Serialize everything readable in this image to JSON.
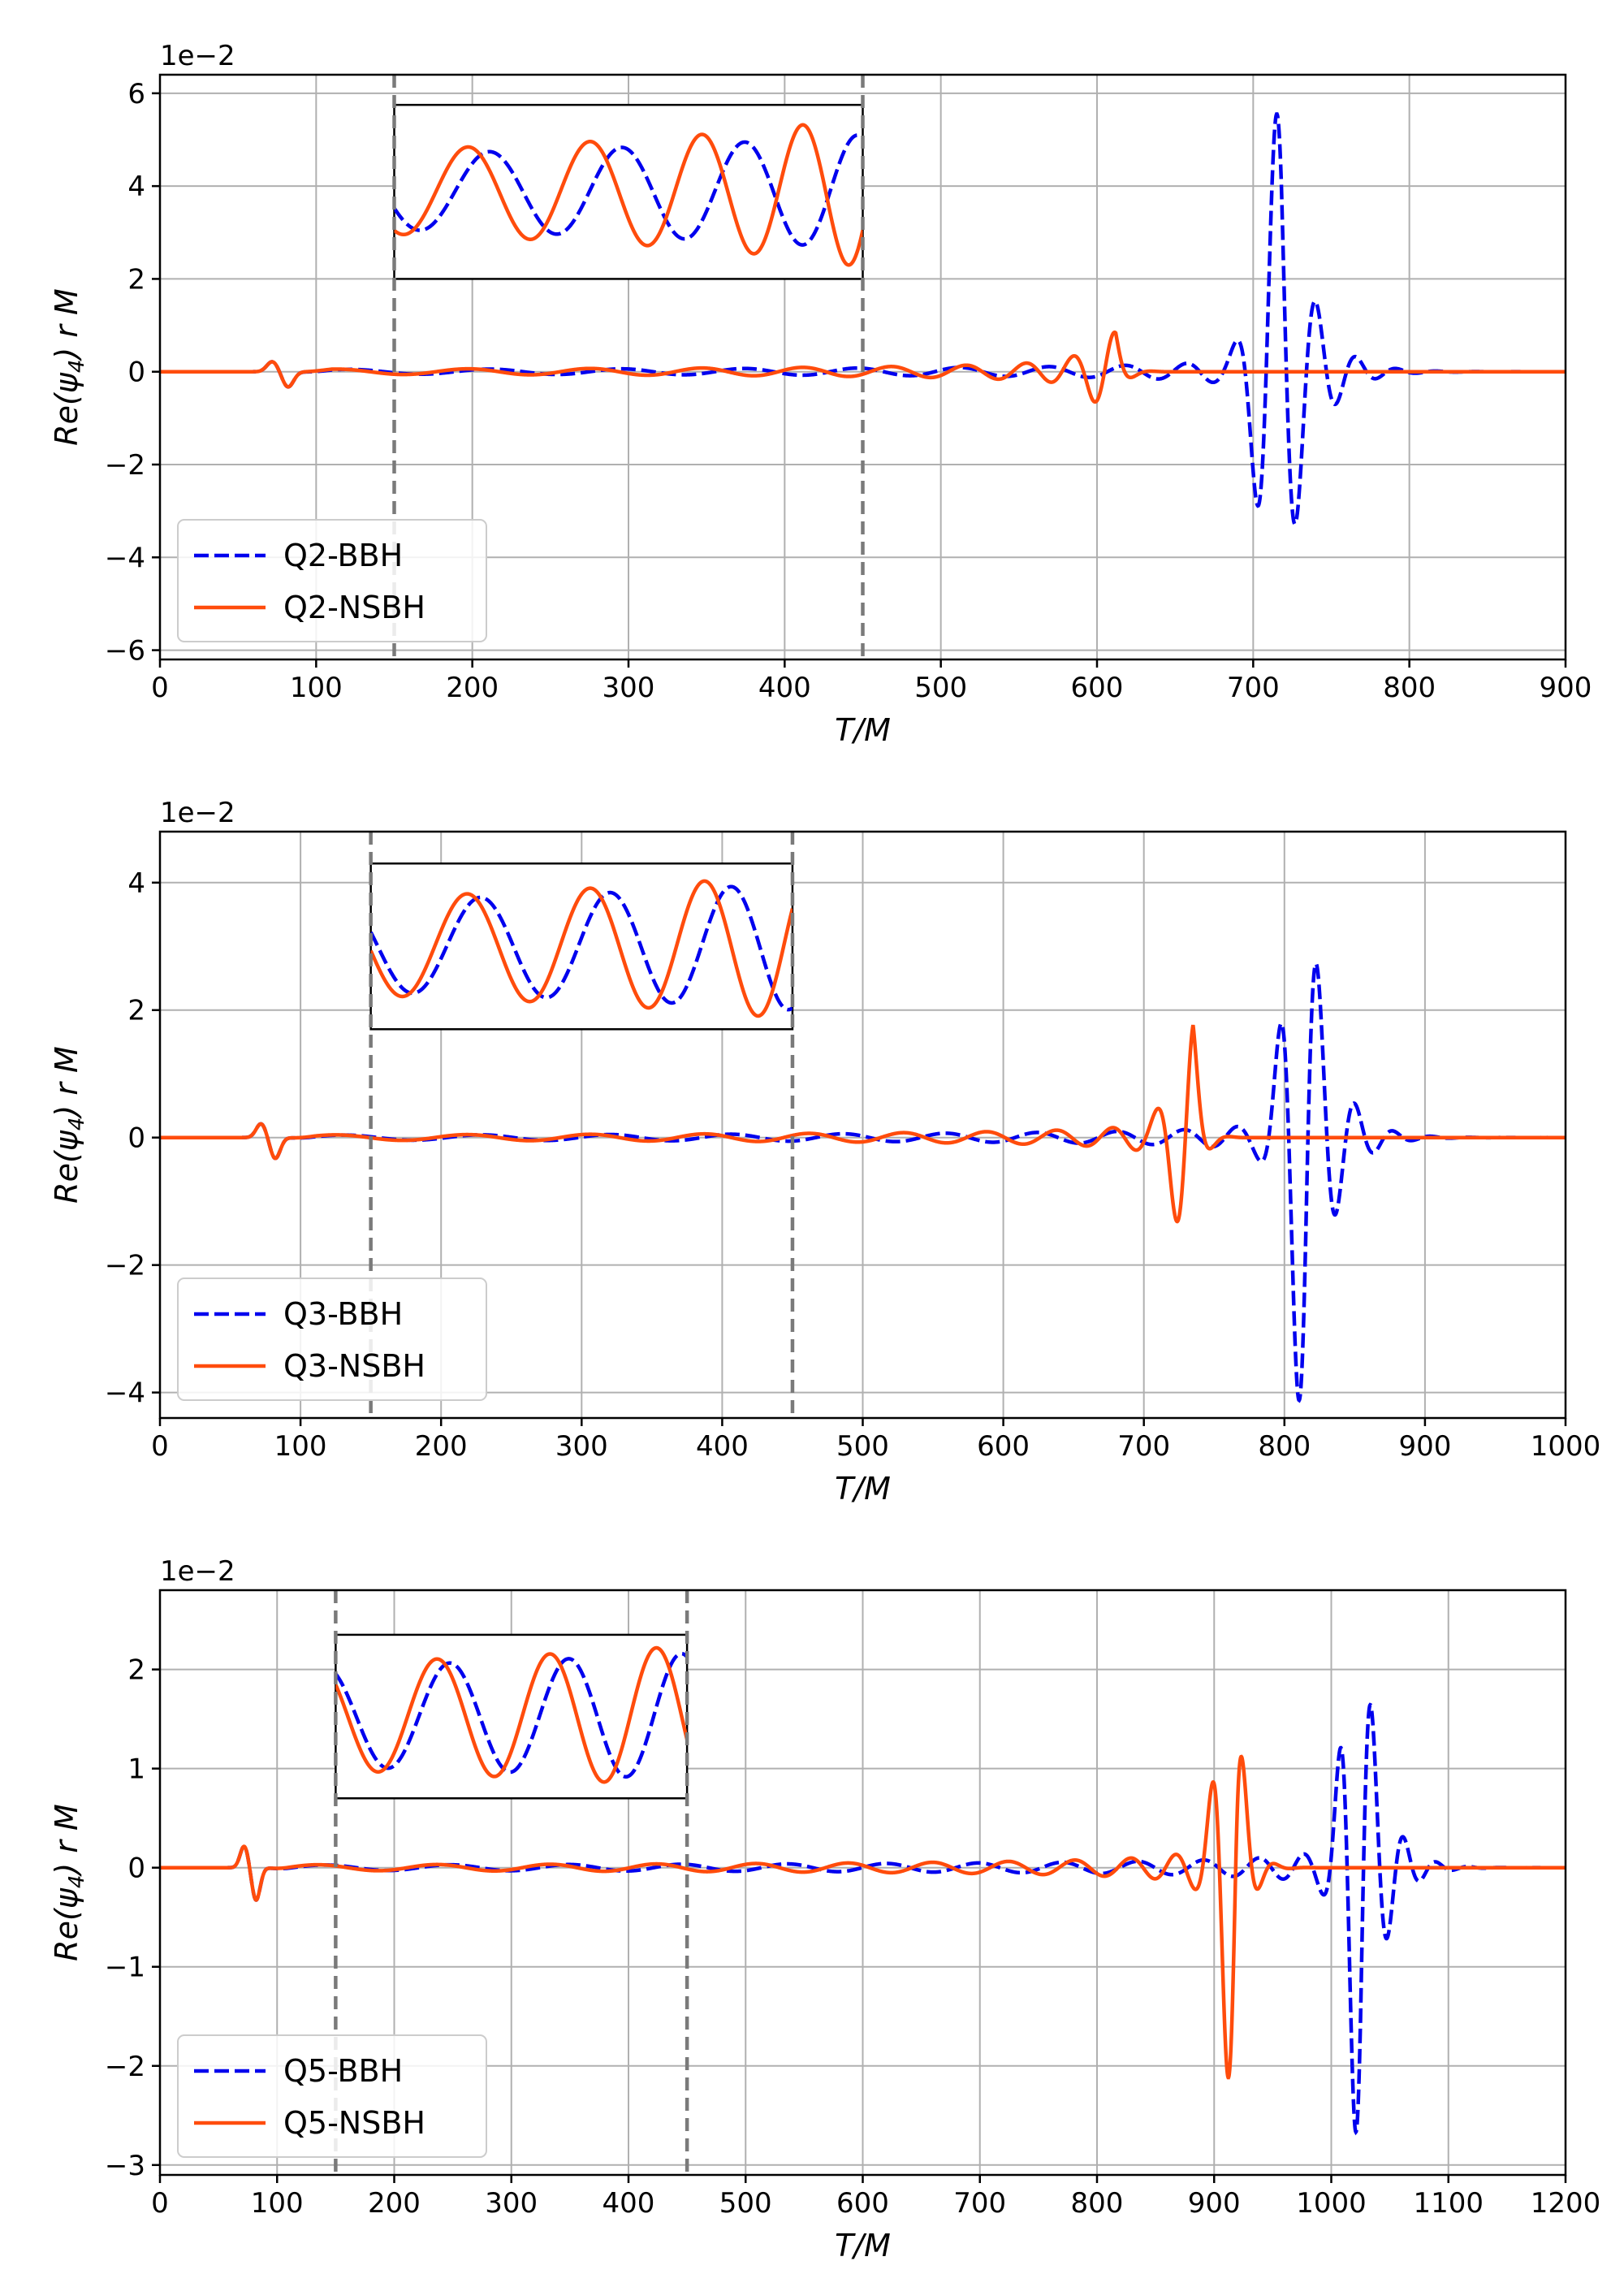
{
  "colors": {
    "bbh": "#0000ee",
    "nsbh": "#ff4c0c",
    "grid": "#b0b0b0",
    "guide": "#7a7a7a"
  },
  "chart_data": [
    {
      "type": "line",
      "panel": "Q2",
      "xlabel": "T/M",
      "ylabel": "Re(ψ4) r M",
      "ylabel_plain": "Re(",
      "ylabel_psi": "ψ",
      "ylabel_sub": "4",
      "ylabel_tail": ") r M",
      "scale_label": "1e−2",
      "xlim": [
        0,
        900
      ],
      "ylim": [
        -6.2,
        6.4
      ],
      "xticks": [
        "0",
        "100",
        "200",
        "300",
        "400",
        "500",
        "600",
        "700",
        "800",
        "900"
      ],
      "xtick_values": [
        0,
        100,
        200,
        300,
        400,
        500,
        600,
        700,
        800,
        900
      ],
      "yticks": [
        "−6",
        "−4",
        "−2",
        "0",
        "2",
        "4",
        "6"
      ],
      "ytick_values": [
        -6,
        -4,
        -2,
        0,
        2,
        4,
        6
      ],
      "grid": true,
      "legend_position": "lower-left",
      "window": [
        150,
        450
      ],
      "inset_y": [
        2.0,
        5.75
      ],
      "series": [
        {
          "name": "Q2-BBH",
          "style": "dashed",
          "color_key": "bbh",
          "t_merger": 718,
          "peak": 5.7,
          "omega_a": 0.0375,
          "chirp": 0.0535,
          "chirp_tmin": 50,
          "ring_decay": 0.06,
          "amp_insp": 0.06,
          "phase": 0
        },
        {
          "name": "Q2-NSBH",
          "style": "solid",
          "color_key": "nsbh",
          "t_merger": 612,
          "peak": 0.85,
          "omega_a": 0.0375,
          "chirp": 0.0535,
          "chirp_tmin": 50,
          "ring_decay": 0.18,
          "amp_insp": 0.06,
          "phase": 0
        }
      ]
    },
    {
      "type": "line",
      "panel": "Q3",
      "xlabel": "T/M",
      "ylabel": "Re(ψ4) r M",
      "ylabel_plain": "Re(",
      "ylabel_psi": "ψ",
      "ylabel_sub": "4",
      "ylabel_tail": ") r M",
      "scale_label": "1e−2",
      "xlim": [
        0,
        1000
      ],
      "ylim": [
        -4.4,
        4.8
      ],
      "xticks": [
        "0",
        "100",
        "200",
        "300",
        "400",
        "500",
        "600",
        "700",
        "800",
        "900",
        "1000"
      ],
      "xtick_values": [
        0,
        100,
        200,
        300,
        400,
        500,
        600,
        700,
        800,
        900,
        1000
      ],
      "yticks": [
        "−4",
        "−2",
        "0",
        "2",
        "4"
      ],
      "ytick_values": [
        -4,
        -2,
        0,
        2,
        4
      ],
      "grid": true,
      "legend_position": "lower-left",
      "window": [
        150,
        450
      ],
      "inset_y": [
        1.7,
        4.3
      ],
      "series": [
        {
          "name": "Q3-BBH",
          "style": "dashed",
          "color_key": "bbh",
          "t_merger": 815,
          "peak": 4.4,
          "omega_a": 0.0365,
          "chirp": 0.048,
          "chirp_tmin": 50,
          "ring_decay": 0.06,
          "amp_insp": 0.05,
          "phase": 0
        },
        {
          "name": "Q3-NSBH",
          "style": "solid",
          "color_key": "nsbh",
          "t_merger": 735,
          "peak": 1.85,
          "omega_a": 0.0365,
          "chirp": 0.0505,
          "chirp_tmin": 50,
          "ring_decay": 0.18,
          "amp_insp": 0.05,
          "phase": 0
        }
      ]
    },
    {
      "type": "line",
      "panel": "Q5",
      "xlabel": "T/M",
      "ylabel": "Re(ψ4) r M",
      "ylabel_plain": "Re(",
      "ylabel_psi": "ψ",
      "ylabel_sub": "4",
      "ylabel_tail": ") r M",
      "scale_label": "1e−2",
      "xlim": [
        0,
        1200
      ],
      "ylim": [
        -3.1,
        2.8
      ],
      "xticks": [
        "0",
        "100",
        "200",
        "300",
        "400",
        "500",
        "600",
        "700",
        "800",
        "900",
        "1000",
        "1100",
        "1200"
      ],
      "xtick_values": [
        0,
        100,
        200,
        300,
        400,
        500,
        600,
        700,
        800,
        900,
        1000,
        1100,
        1200
      ],
      "yticks": [
        "−3",
        "−2",
        "−1",
        "0",
        "1",
        "2"
      ],
      "ytick_values": [
        -3,
        -2,
        -1,
        0,
        1,
        2
      ],
      "grid": true,
      "legend_position": "lower-left",
      "window": [
        150,
        450
      ],
      "inset_y": [
        0.7,
        2.35
      ],
      "series": [
        {
          "name": "Q5-BBH",
          "style": "dashed",
          "color_key": "bbh",
          "t_merger": 1025,
          "peak": 2.8,
          "omega_a": 0.037,
          "chirp": 0.04,
          "chirp_tmin": 50,
          "ring_decay": 0.06,
          "amp_insp": 0.04,
          "phase": 0
        },
        {
          "name": "Q5-NSBH",
          "style": "solid",
          "color_key": "nsbh",
          "t_merger": 918,
          "peak": 2.35,
          "omega_a": 0.037,
          "chirp": 0.042,
          "chirp_tmin": 50,
          "ring_decay": 0.12,
          "amp_insp": 0.04,
          "phase": 0
        }
      ]
    }
  ]
}
